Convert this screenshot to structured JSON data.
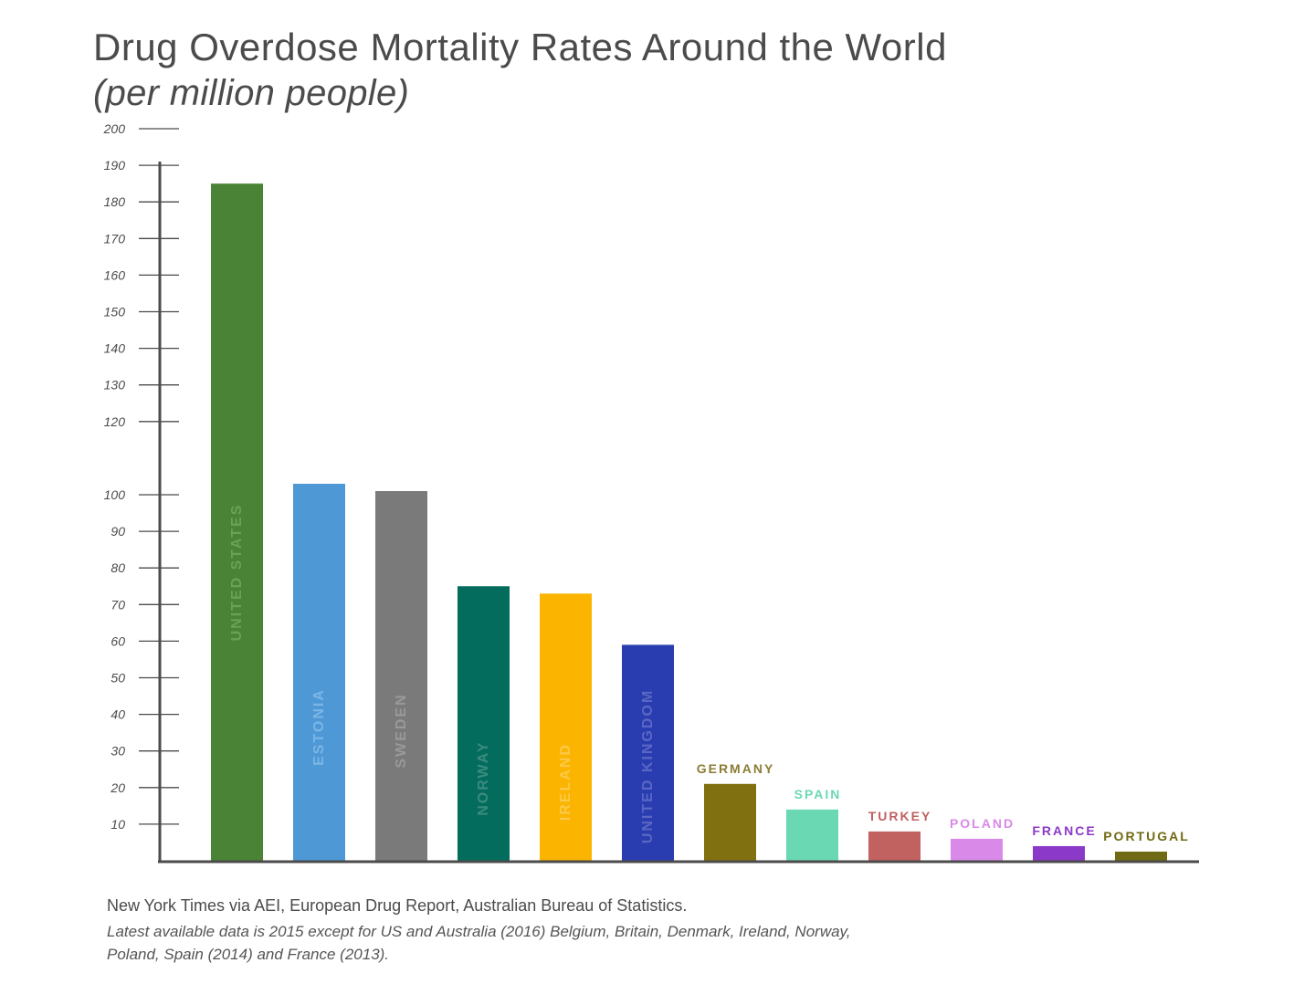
{
  "chart_data": {
    "type": "bar",
    "title": "Drug Overdose Mortality Rates Around the World",
    "subtitle": "(per million people)",
    "categories": [
      "UNITED STATES",
      "ESTONIA",
      "SWEDEN",
      "NORWAY",
      "IRELAND",
      "UNITED KINGDOM",
      "GERMANY",
      "SPAIN",
      "TURKEY",
      "POLAND",
      "FRANCE",
      "PORTUGAL"
    ],
    "values": [
      185,
      103,
      101,
      75,
      73,
      59,
      21,
      14,
      8,
      6,
      4,
      2.5
    ],
    "colors": [
      "#4a8336",
      "#4f98d6",
      "#7a7a7a",
      "#036c5c",
      "#fbb400",
      "#2a3db0",
      "#80700f",
      "#6ad8b3",
      "#c16160",
      "#d989e8",
      "#8b39c8",
      "#706a14"
    ],
    "label_colors": [
      "#6aa253",
      "#7ab6e6",
      "#999999",
      "#3a8c7f",
      "#fcc948",
      "#5a67c4",
      "#8b7d34",
      "#6ad8b3",
      "#c16160",
      "#d989e8",
      "#8b39c8",
      "#706a14"
    ],
    "label_inside": [
      true,
      true,
      true,
      true,
      true,
      true,
      false,
      false,
      false,
      false,
      false,
      false
    ],
    "ylim": [
      0,
      200
    ],
    "yticks": [
      10,
      20,
      30,
      40,
      50,
      60,
      70,
      80,
      90,
      100,
      120,
      130,
      140,
      150,
      160,
      170,
      180,
      190,
      200
    ],
    "xlabel": "",
    "ylabel": "",
    "grid": false,
    "legend": "none"
  },
  "source": {
    "line": "New York Times via AEI, European Drug Report, Australian Bureau of Statistics.",
    "note": "Latest available data is 2015 except for US and Australia (2016) Belgium, Britain, Denmark, Ireland, Norway, Poland, Spain (2014) and France (2013)."
  }
}
